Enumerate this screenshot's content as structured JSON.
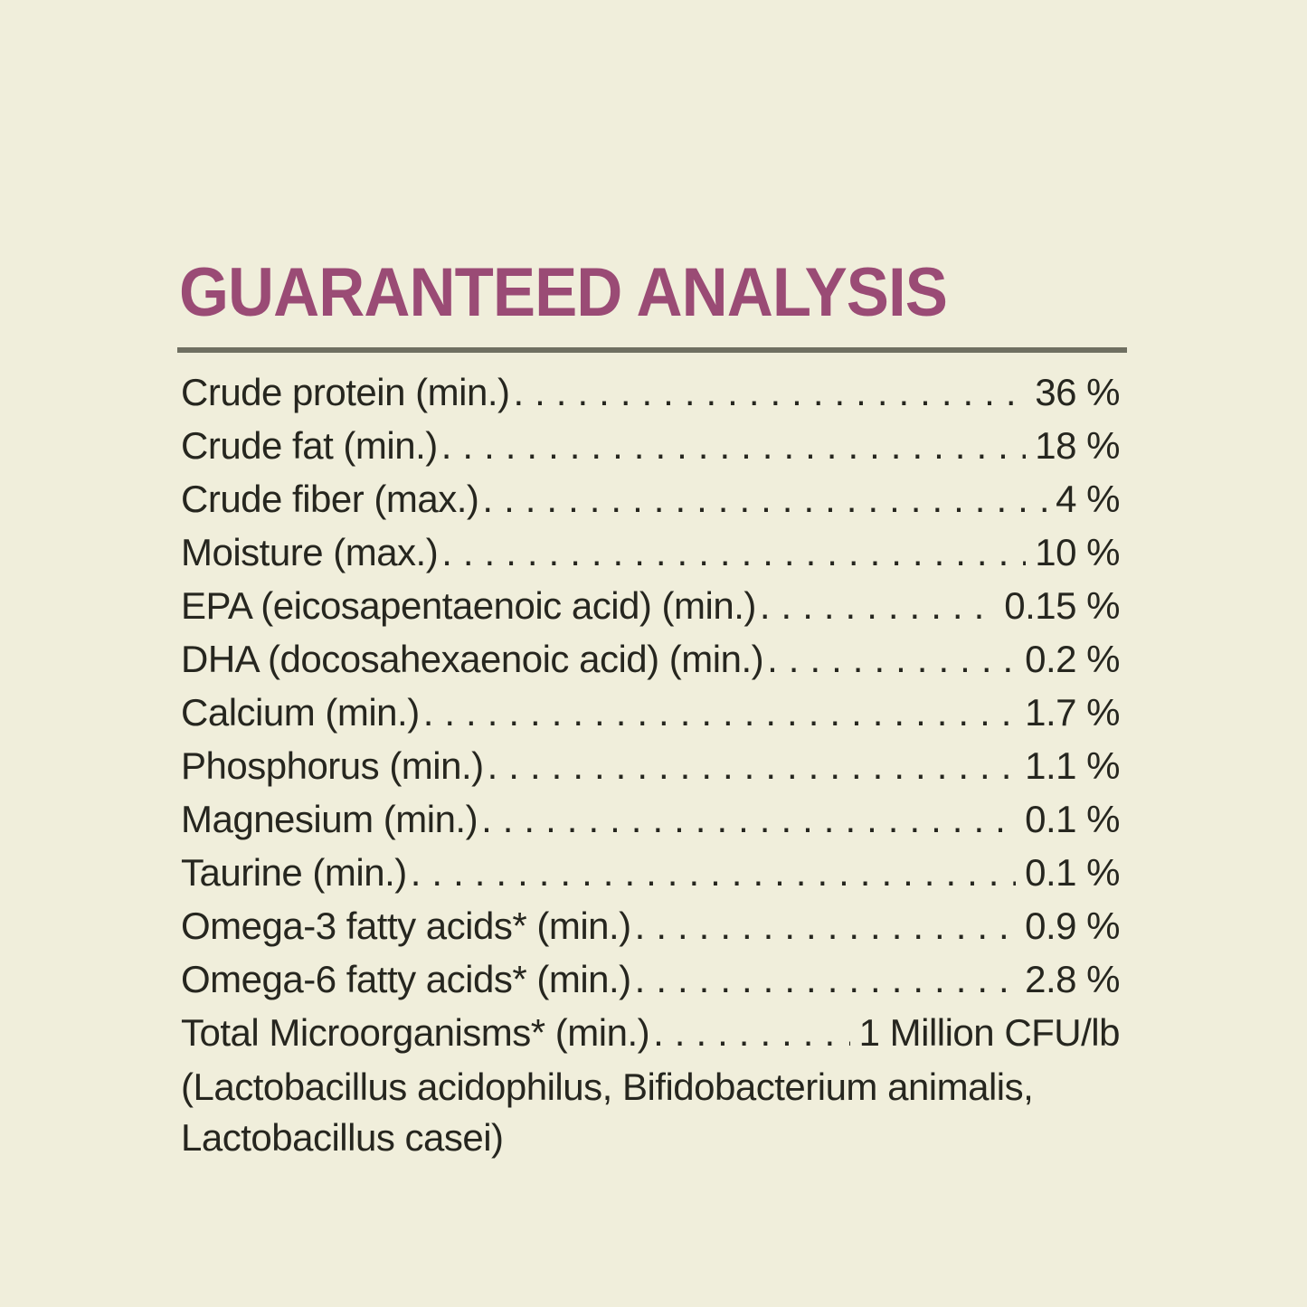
{
  "panel": {
    "title": "GUARANTEED ANALYSIS",
    "colors": {
      "background": "#f0eedb",
      "title": "#9a4b75",
      "divider": "#6f6f61",
      "text": "#26261f"
    },
    "rows": [
      {
        "label": "Crude protein (min.)",
        "value": "36 %"
      },
      {
        "label": "Crude fat (min.)",
        "value": "18 %"
      },
      {
        "label": "Crude fiber (max.)",
        "value": "4 %"
      },
      {
        "label": "Moisture (max.)",
        "value": "10 %"
      },
      {
        "label": "EPA (eicosapentaenoic acid) (min.)",
        "value": "0.15 %"
      },
      {
        "label": "DHA (docosahexaenoic acid) (min.)",
        "value": "0.2 %"
      },
      {
        "label": "Calcium (min.)",
        "value": "1.7 %"
      },
      {
        "label": "Phosphorus (min.)",
        "value": "1.1 %"
      },
      {
        "label": "Magnesium (min.)",
        "value": "0.1 %"
      },
      {
        "label": "Taurine (min.)",
        "value": "0.1 %"
      },
      {
        "label": "Omega-3 fatty acids* (min.)",
        "value": "0.9 %"
      },
      {
        "label": "Omega-6 fatty acids* (min.)",
        "value": "2.8 %"
      },
      {
        "label": "Total Microorganisms* (min.)",
        "value": "1 Million CFU/lb"
      }
    ],
    "footnote_lines": [
      "(Lactobacillus acidophilus, Bifidobacterium animalis,",
      "Lactobacillus casei)"
    ]
  }
}
